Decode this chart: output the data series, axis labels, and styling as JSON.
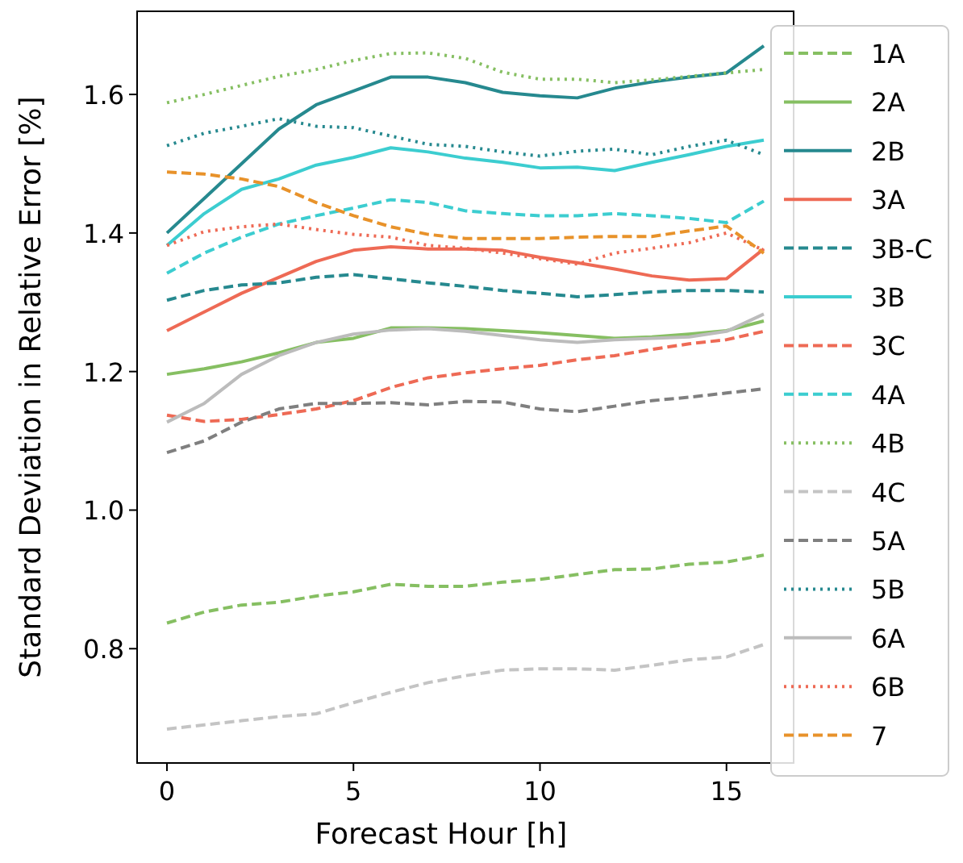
{
  "chart_data": {
    "type": "line",
    "xlabel": "Forecast Hour [h]",
    "ylabel": "Standard Deviation in Relative Error [%]",
    "x": [
      0,
      1,
      2,
      3,
      4,
      5,
      6,
      7,
      8,
      9,
      10,
      11,
      12,
      13,
      14,
      15,
      16
    ],
    "xlim": [
      -0.8,
      16.8
    ],
    "xticks": [
      0,
      5,
      10,
      15
    ],
    "ylim": [
      0.635,
      1.72
    ],
    "yticks": [
      {
        "value": 0.8,
        "label": "0.8"
      },
      {
        "value": 1.0,
        "label": "1.0"
      },
      {
        "value": 1.2,
        "label": "1.2"
      },
      {
        "value": 1.4,
        "label": "1.4"
      },
      {
        "value": 1.6,
        "label": "1.6"
      }
    ],
    "grid": false,
    "legend": "right",
    "marker": "none",
    "series": [
      {
        "name": "1A",
        "color": "#86bf62",
        "line_style": "dashed",
        "values": [
          0.837,
          0.853,
          0.863,
          0.867,
          0.876,
          0.882,
          0.893,
          0.89,
          0.89,
          0.896,
          0.9,
          0.907,
          0.914,
          0.915,
          0.922,
          0.925,
          0.935
        ]
      },
      {
        "name": "2A",
        "color": "#86bf62",
        "line_style": "solid",
        "values": [
          1.196,
          1.204,
          1.214,
          1.227,
          1.242,
          1.248,
          1.263,
          1.263,
          1.262,
          1.259,
          1.256,
          1.252,
          1.248,
          1.25,
          1.254,
          1.259,
          1.273
        ]
      },
      {
        "name": "2B",
        "color": "#26898f",
        "line_style": "solid",
        "values": [
          1.4,
          1.45,
          1.5,
          1.55,
          1.585,
          1.605,
          1.625,
          1.625,
          1.617,
          1.603,
          1.598,
          1.595,
          1.609,
          1.618,
          1.625,
          1.631,
          1.67
        ]
      },
      {
        "name": "3A",
        "color": "#ee6a55",
        "line_style": "solid",
        "values": [
          1.259,
          1.286,
          1.313,
          1.336,
          1.359,
          1.375,
          1.38,
          1.377,
          1.377,
          1.375,
          1.365,
          1.357,
          1.348,
          1.338,
          1.332,
          1.334,
          1.377
        ]
      },
      {
        "name": "3B-C",
        "color": "#26898f",
        "line_style": "dashed",
        "values": [
          1.303,
          1.317,
          1.325,
          1.328,
          1.336,
          1.34,
          1.334,
          1.328,
          1.323,
          1.317,
          1.313,
          1.308,
          1.311,
          1.315,
          1.317,
          1.317,
          1.315
        ]
      },
      {
        "name": "3B",
        "color": "#3ccdd0",
        "line_style": "solid",
        "values": [
          1.382,
          1.428,
          1.463,
          1.478,
          1.498,
          1.509,
          1.523,
          1.517,
          1.508,
          1.502,
          1.494,
          1.495,
          1.49,
          1.502,
          1.513,
          1.525,
          1.534
        ]
      },
      {
        "name": "3C",
        "color": "#ee6a55",
        "line_style": "dashed",
        "values": [
          1.137,
          1.128,
          1.131,
          1.138,
          1.146,
          1.158,
          1.177,
          1.191,
          1.198,
          1.204,
          1.209,
          1.217,
          1.223,
          1.232,
          1.24,
          1.246,
          1.258
        ]
      },
      {
        "name": "4A",
        "color": "#3ccdd0",
        "line_style": "dashed",
        "values": [
          1.342,
          1.371,
          1.394,
          1.413,
          1.425,
          1.436,
          1.448,
          1.444,
          1.432,
          1.428,
          1.425,
          1.425,
          1.428,
          1.425,
          1.421,
          1.415,
          1.446
        ]
      },
      {
        "name": "4B",
        "color": "#86bf62",
        "line_style": "dotted",
        "values": [
          1.588,
          1.6,
          1.613,
          1.626,
          1.636,
          1.649,
          1.659,
          1.66,
          1.652,
          1.632,
          1.622,
          1.622,
          1.617,
          1.621,
          1.626,
          1.631,
          1.636
        ]
      },
      {
        "name": "4C",
        "color": "#c4c4c4",
        "line_style": "dashed",
        "values": [
          0.684,
          0.69,
          0.696,
          0.702,
          0.706,
          0.722,
          0.737,
          0.751,
          0.761,
          0.769,
          0.771,
          0.771,
          0.769,
          0.776,
          0.784,
          0.788,
          0.806
        ]
      },
      {
        "name": "5A",
        "color": "#7f7f7f",
        "line_style": "dashed",
        "values": [
          1.083,
          1.1,
          1.127,
          1.146,
          1.154,
          1.154,
          1.155,
          1.152,
          1.157,
          1.156,
          1.146,
          1.142,
          1.15,
          1.158,
          1.163,
          1.169,
          1.175
        ]
      },
      {
        "name": "5B",
        "color": "#26898f",
        "line_style": "dotted",
        "values": [
          1.526,
          1.544,
          1.554,
          1.565,
          1.554,
          1.552,
          1.54,
          1.528,
          1.525,
          1.517,
          1.511,
          1.518,
          1.521,
          1.513,
          1.525,
          1.534,
          1.513
        ]
      },
      {
        "name": "6A",
        "color": "#bcbcbc",
        "line_style": "solid",
        "values": [
          1.127,
          1.154,
          1.196,
          1.223,
          1.242,
          1.254,
          1.26,
          1.262,
          1.258,
          1.252,
          1.246,
          1.242,
          1.246,
          1.248,
          1.25,
          1.258,
          1.283
        ]
      },
      {
        "name": "6B",
        "color": "#ee6a55",
        "line_style": "dotted",
        "values": [
          1.382,
          1.402,
          1.409,
          1.413,
          1.405,
          1.398,
          1.394,
          1.382,
          1.378,
          1.371,
          1.363,
          1.355,
          1.371,
          1.378,
          1.386,
          1.4,
          1.375
        ]
      },
      {
        "name": "7",
        "color": "#e8922a",
        "line_style": "dashed",
        "values": [
          1.488,
          1.485,
          1.478,
          1.467,
          1.444,
          1.425,
          1.409,
          1.398,
          1.392,
          1.392,
          1.392,
          1.394,
          1.395,
          1.395,
          1.403,
          1.41,
          1.371
        ]
      }
    ]
  }
}
